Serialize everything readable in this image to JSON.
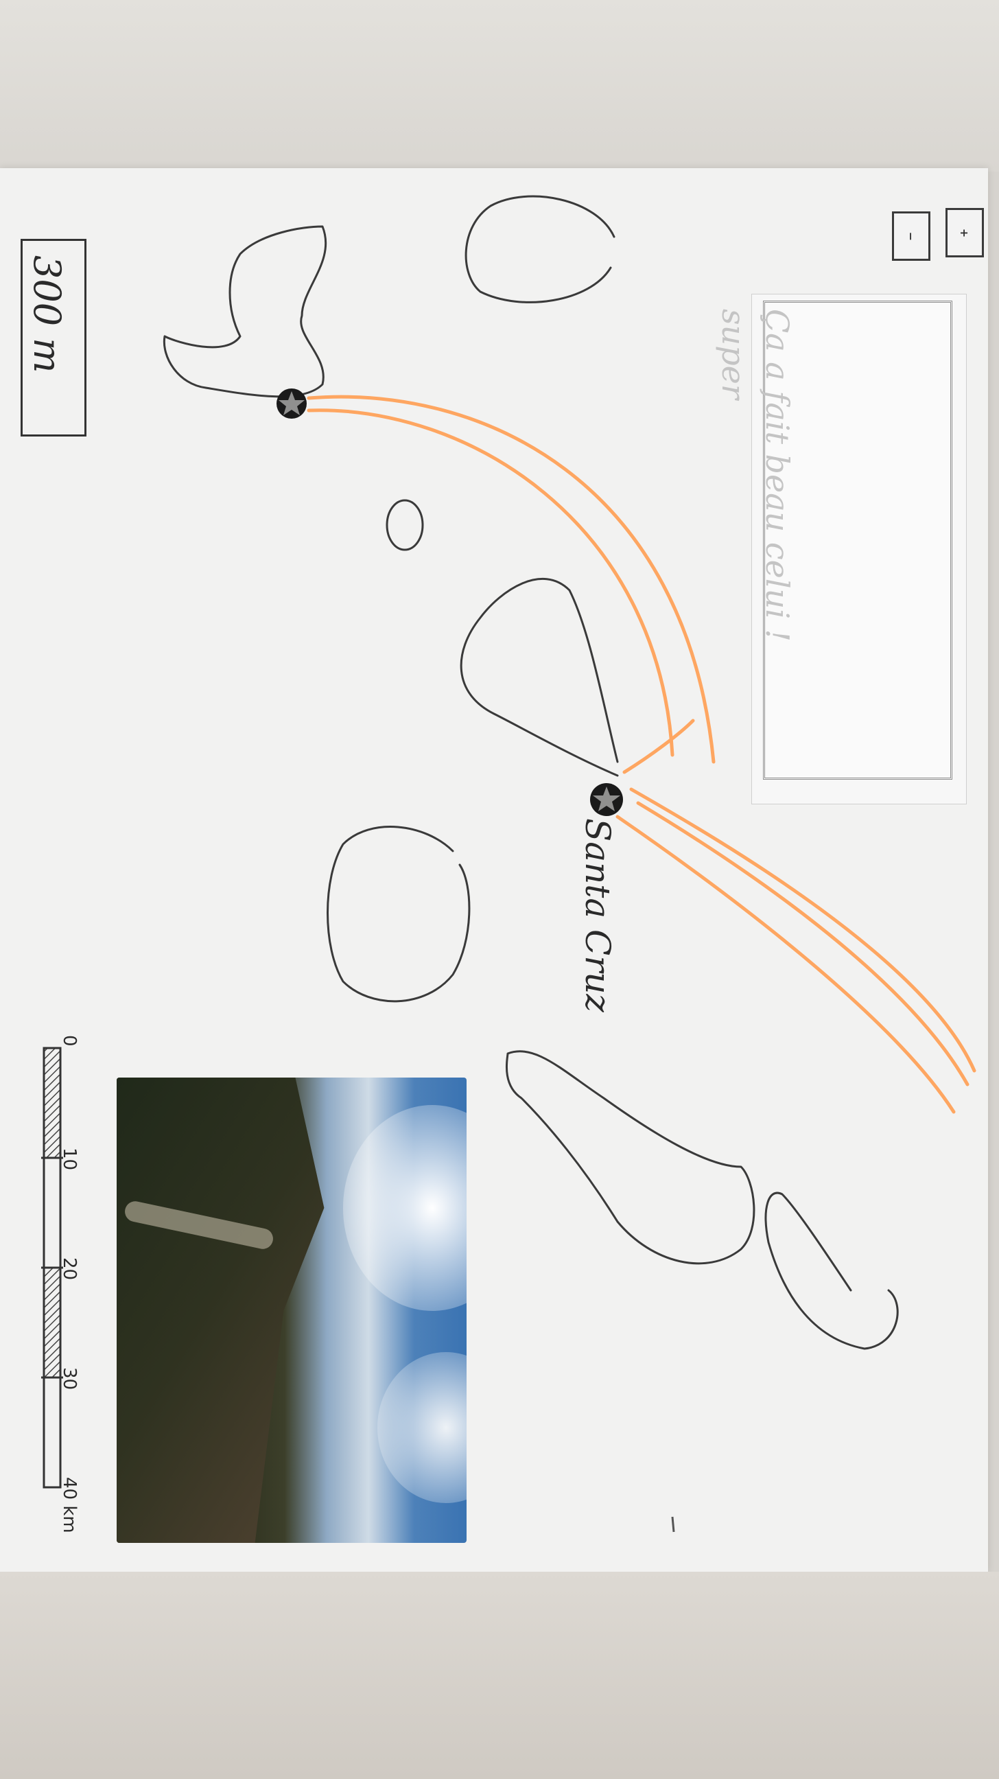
{
  "info_panel": {
    "text_line1": "Ça a fait beau celui !",
    "text_line2": "super"
  },
  "zoom": {
    "out_label": "−",
    "in_label": "+"
  },
  "places": {
    "santa_cruz": "Santa Cruz"
  },
  "distance_indicator": "300 m",
  "scale_bar": {
    "ticks": [
      "0",
      "10",
      "20",
      "30",
      "40 km"
    ],
    "unit": "km"
  },
  "colors": {
    "route": "#ffa25a",
    "outline": "#3a3a3a",
    "paper": "#f2f2f1"
  },
  "icons": {
    "waypoint": "star-marker-icon"
  }
}
